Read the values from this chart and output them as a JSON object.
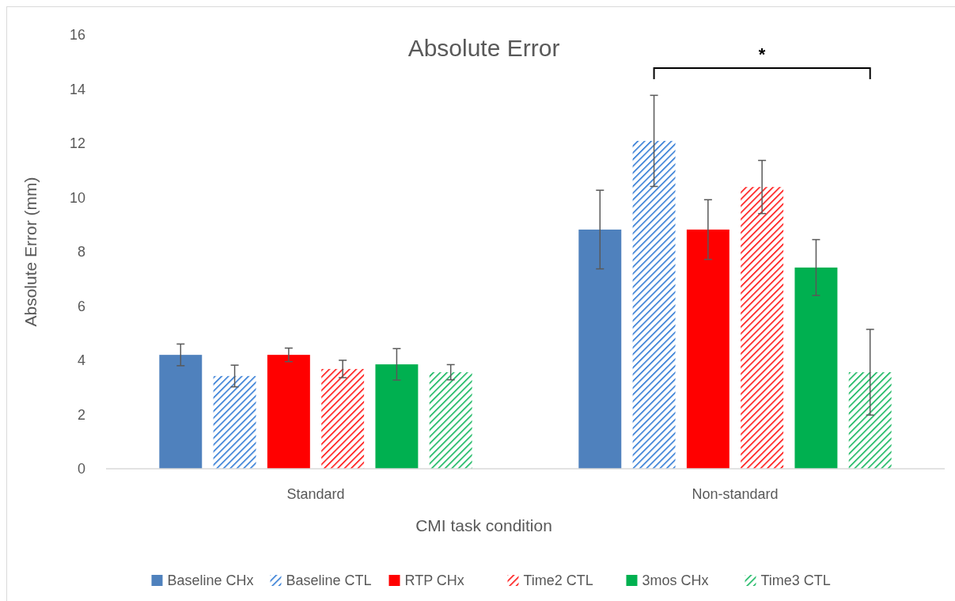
{
  "chart_data": {
    "type": "bar",
    "title": "Absolute Error",
    "xlabel": "CMI task condition",
    "ylabel": "Absolute Error (mm)",
    "categories": [
      "Standard",
      "Non-standard"
    ],
    "series": [
      {
        "name": "Baseline CHx",
        "color": "#4f81bd",
        "values": [
          4.2,
          8.82
        ],
        "errors": [
          0.4,
          1.45
        ]
      },
      {
        "name": "Baseline CTL",
        "color": "#1f6fd1",
        "values": [
          3.42,
          12.09
        ],
        "errors": [
          0.4,
          1.68
        ]
      },
      {
        "name": "RTP CHx",
        "color": "#ff0000",
        "values": [
          4.2,
          8.82
        ],
        "errors": [
          0.25,
          1.1
        ]
      },
      {
        "name": "Time2 CTL",
        "color": "#ff0000",
        "values": [
          3.68,
          10.39
        ],
        "errors": [
          0.32,
          0.98
        ]
      },
      {
        "name": "3mos CHx",
        "color": "#00b050",
        "values": [
          3.85,
          7.42
        ],
        "errors": [
          0.58,
          1.03
        ]
      },
      {
        "name": "Time3 CTL",
        "color": "#00b050",
        "values": [
          3.56,
          3.56
        ],
        "errors": [
          0.28,
          1.58
        ]
      }
    ],
    "ylim": [
      0,
      16
    ],
    "yticks": [
      0,
      2,
      4,
      6,
      8,
      10,
      12,
      14,
      16
    ],
    "grid": false,
    "legend": "bottom",
    "annotations": [
      "*"
    ]
  }
}
